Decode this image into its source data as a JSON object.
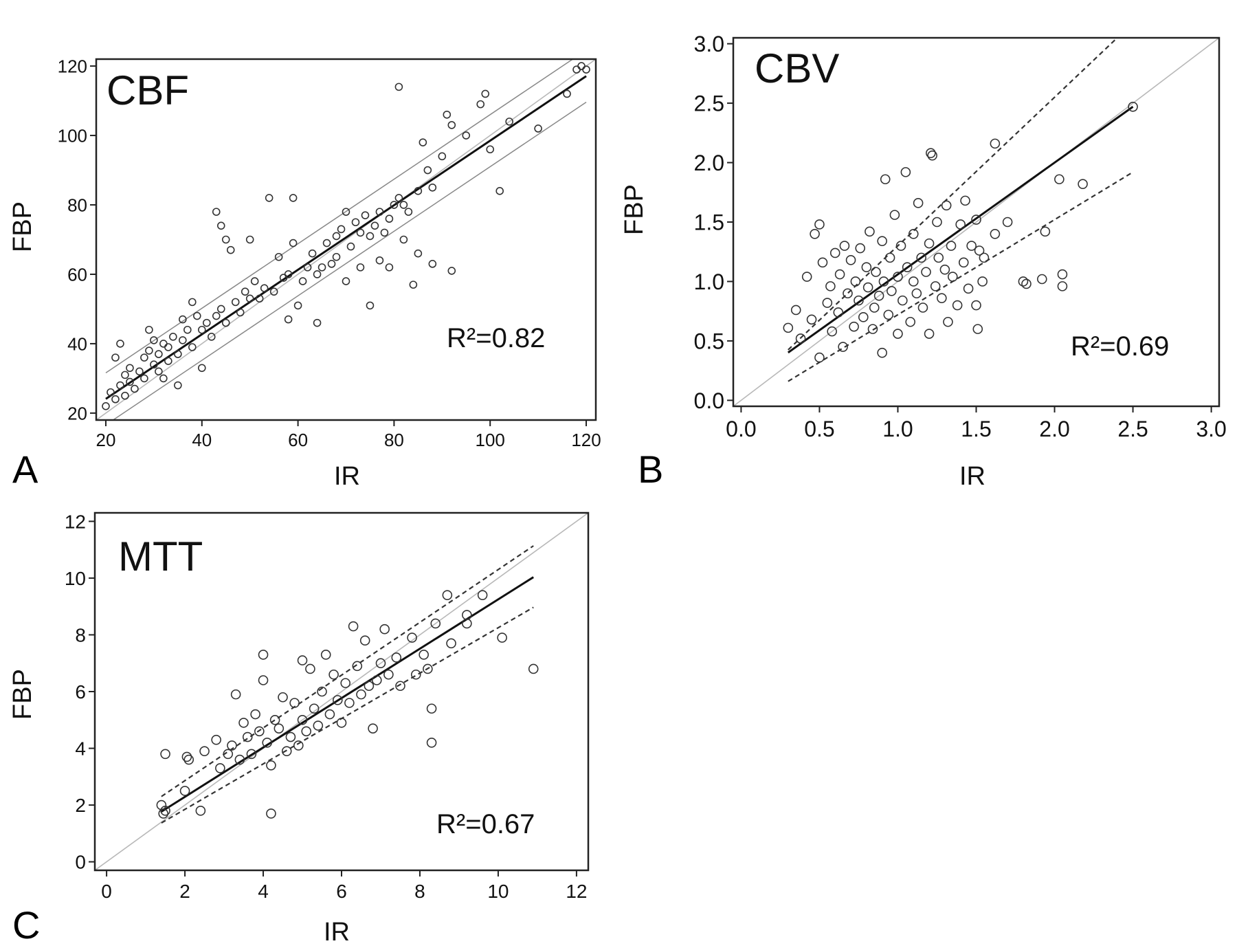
{
  "chart_data": [
    {
      "type": "scatter",
      "panel_label": "A",
      "title": "CBF",
      "xlabel": "IR",
      "ylabel": "FBP",
      "xlim": [
        18,
        122
      ],
      "ylim": [
        18,
        122
      ],
      "xticks": [
        "20",
        "40",
        "60",
        "80",
        "100",
        "120"
      ],
      "yticks": [
        "20",
        "40",
        "60",
        "80",
        "100",
        "120"
      ],
      "annotation": "R²=0.82",
      "identity_line": true,
      "band_style": "solid",
      "fit": {
        "slope": 0.93,
        "intercept": 5.5,
        "x_range": [
          20,
          120
        ]
      },
      "bands": {
        "slope": 0.93,
        "offset": 7.5
      },
      "points": [
        [
          20,
          22
        ],
        [
          21,
          26
        ],
        [
          22,
          24
        ],
        [
          22,
          36
        ],
        [
          23,
          28
        ],
        [
          23,
          40
        ],
        [
          24,
          25
        ],
        [
          24,
          31
        ],
        [
          25,
          29
        ],
        [
          25,
          33
        ],
        [
          26,
          27
        ],
        [
          27,
          32
        ],
        [
          28,
          30
        ],
        [
          28,
          36
        ],
        [
          29,
          38
        ],
        [
          29,
          44
        ],
        [
          30,
          34
        ],
        [
          30,
          41
        ],
        [
          31,
          32
        ],
        [
          31,
          37
        ],
        [
          32,
          30
        ],
        [
          32,
          40
        ],
        [
          33,
          35
        ],
        [
          33,
          39
        ],
        [
          34,
          42
        ],
        [
          35,
          28
        ],
        [
          35,
          37
        ],
        [
          36,
          41
        ],
        [
          36,
          47
        ],
        [
          37,
          44
        ],
        [
          38,
          39
        ],
        [
          38,
          52
        ],
        [
          39,
          48
        ],
        [
          40,
          44
        ],
        [
          40,
          33
        ],
        [
          41,
          46
        ],
        [
          42,
          42
        ],
        [
          43,
          48
        ],
        [
          43,
          78
        ],
        [
          44,
          74
        ],
        [
          44,
          50
        ],
        [
          45,
          70
        ],
        [
          45,
          46
        ],
        [
          46,
          67
        ],
        [
          47,
          52
        ],
        [
          48,
          49
        ],
        [
          49,
          55
        ],
        [
          50,
          53
        ],
        [
          50,
          70
        ],
        [
          51,
          58
        ],
        [
          52,
          53
        ],
        [
          53,
          56
        ],
        [
          54,
          82
        ],
        [
          55,
          55
        ],
        [
          56,
          65
        ],
        [
          57,
          59
        ],
        [
          58,
          47
        ],
        [
          58,
          60
        ],
        [
          59,
          82
        ],
        [
          59,
          69
        ],
        [
          60,
          51
        ],
        [
          61,
          58
        ],
        [
          62,
          62
        ],
        [
          63,
          66
        ],
        [
          64,
          60
        ],
        [
          64,
          46
        ],
        [
          65,
          62
        ],
        [
          66,
          69
        ],
        [
          67,
          63
        ],
        [
          68,
          71
        ],
        [
          68,
          65
        ],
        [
          69,
          73
        ],
        [
          70,
          78
        ],
        [
          70,
          58
        ],
        [
          71,
          68
        ],
        [
          72,
          75
        ],
        [
          73,
          72
        ],
        [
          73,
          62
        ],
        [
          74,
          77
        ],
        [
          75,
          51
        ],
        [
          75,
          71
        ],
        [
          76,
          74
        ],
        [
          77,
          78
        ],
        [
          77,
          64
        ],
        [
          78,
          72
        ],
        [
          79,
          76
        ],
        [
          79,
          62
        ],
        [
          80,
          80
        ],
        [
          81,
          114
        ],
        [
          81,
          82
        ],
        [
          82,
          80
        ],
        [
          82,
          70
        ],
        [
          83,
          78
        ],
        [
          84,
          57
        ],
        [
          85,
          66
        ],
        [
          85,
          84
        ],
        [
          86,
          98
        ],
        [
          87,
          90
        ],
        [
          88,
          63
        ],
        [
          88,
          85
        ],
        [
          90,
          94
        ],
        [
          91,
          106
        ],
        [
          92,
          103
        ],
        [
          92,
          61
        ],
        [
          95,
          100
        ],
        [
          98,
          109
        ],
        [
          99,
          112
        ],
        [
          100,
          96
        ],
        [
          102,
          84
        ],
        [
          104,
          104
        ],
        [
          110,
          102
        ],
        [
          116,
          112
        ],
        [
          118,
          119
        ],
        [
          119,
          120
        ],
        [
          120,
          119
        ]
      ]
    },
    {
      "type": "scatter",
      "panel_label": "B",
      "title": "CBV",
      "xlabel": "IR",
      "ylabel": "FBP",
      "xlim": [
        -0.05,
        3.05
      ],
      "ylim": [
        -0.05,
        3.05
      ],
      "xticks": [
        "0.0",
        "0.5",
        "1.0",
        "1.5",
        "2.0",
        "2.5",
        "3.0"
      ],
      "yticks": [
        "0.0",
        "0.5",
        "1.0",
        "1.5",
        "2.0",
        "2.5",
        "3.0"
      ],
      "annotation": "R²=0.69",
      "identity_line": true,
      "band_style": "dashed",
      "fit": {
        "slope": 0.94,
        "intercept": 0.12,
        "x_range": [
          0.3,
          2.5
        ]
      },
      "bands": {
        "slope": 1.25,
        "intercept": 0.05,
        "lower_slope": 0.8,
        "lower_intercept": -0.08
      },
      "points": [
        [
          0.3,
          0.61
        ],
        [
          0.35,
          0.76
        ],
        [
          0.38,
          0.52
        ],
        [
          0.42,
          1.04
        ],
        [
          0.45,
          0.68
        ],
        [
          0.47,
          1.4
        ],
        [
          0.5,
          1.48
        ],
        [
          0.5,
          0.36
        ],
        [
          0.52,
          1.16
        ],
        [
          0.55,
          0.82
        ],
        [
          0.57,
          0.96
        ],
        [
          0.58,
          0.58
        ],
        [
          0.6,
          1.24
        ],
        [
          0.62,
          0.74
        ],
        [
          0.63,
          1.06
        ],
        [
          0.65,
          0.45
        ],
        [
          0.66,
          1.3
        ],
        [
          0.68,
          0.9
        ],
        [
          0.7,
          1.18
        ],
        [
          0.72,
          0.62
        ],
        [
          0.73,
          1.0
        ],
        [
          0.75,
          0.84
        ],
        [
          0.76,
          1.28
        ],
        [
          0.78,
          0.7
        ],
        [
          0.8,
          1.12
        ],
        [
          0.81,
          0.95
        ],
        [
          0.82,
          1.42
        ],
        [
          0.84,
          0.6
        ],
        [
          0.85,
          0.78
        ],
        [
          0.86,
          1.08
        ],
        [
          0.88,
          0.88
        ],
        [
          0.9,
          1.34
        ],
        [
          0.9,
          0.4
        ],
        [
          0.91,
          1.0
        ],
        [
          0.92,
          1.86
        ],
        [
          0.94,
          0.72
        ],
        [
          0.95,
          1.2
        ],
        [
          0.96,
          0.92
        ],
        [
          0.98,
          1.56
        ],
        [
          1.0,
          1.04
        ],
        [
          1.0,
          0.56
        ],
        [
          1.02,
          1.3
        ],
        [
          1.03,
          0.84
        ],
        [
          1.05,
          1.92
        ],
        [
          1.06,
          1.12
        ],
        [
          1.08,
          0.66
        ],
        [
          1.1,
          1.0
        ],
        [
          1.1,
          1.4
        ],
        [
          1.12,
          0.9
        ],
        [
          1.13,
          1.66
        ],
        [
          1.15,
          1.2
        ],
        [
          1.16,
          0.78
        ],
        [
          1.18,
          1.08
        ],
        [
          1.2,
          1.32
        ],
        [
          1.2,
          0.56
        ],
        [
          1.21,
          2.08
        ],
        [
          1.22,
          2.06
        ],
        [
          1.24,
          0.96
        ],
        [
          1.25,
          1.5
        ],
        [
          1.26,
          1.2
        ],
        [
          1.28,
          0.86
        ],
        [
          1.3,
          1.1
        ],
        [
          1.31,
          1.64
        ],
        [
          1.32,
          0.66
        ],
        [
          1.34,
          1.3
        ],
        [
          1.35,
          1.04
        ],
        [
          1.38,
          0.8
        ],
        [
          1.4,
          1.48
        ],
        [
          1.42,
          1.16
        ],
        [
          1.43,
          1.68
        ],
        [
          1.45,
          0.94
        ],
        [
          1.47,
          1.3
        ],
        [
          1.5,
          0.8
        ],
        [
          1.5,
          1.52
        ],
        [
          1.51,
          0.6
        ],
        [
          1.52,
          1.26
        ],
        [
          1.54,
          1.0
        ],
        [
          1.55,
          1.2
        ],
        [
          1.62,
          2.16
        ],
        [
          1.62,
          1.4
        ],
        [
          1.7,
          1.5
        ],
        [
          1.8,
          1.0
        ],
        [
          1.82,
          0.98
        ],
        [
          1.92,
          1.02
        ],
        [
          1.94,
          1.42
        ],
        [
          2.03,
          1.86
        ],
        [
          2.05,
          1.06
        ],
        [
          2.05,
          0.96
        ],
        [
          2.18,
          1.82
        ],
        [
          2.5,
          2.47
        ]
      ]
    },
    {
      "type": "scatter",
      "panel_label": "C",
      "title": "MTT",
      "xlabel": "IR",
      "ylabel": "FBP",
      "xlim": [
        -0.3,
        12.3
      ],
      "ylim": [
        -0.3,
        12.3
      ],
      "xticks": [
        "0",
        "2",
        "4",
        "6",
        "8",
        "10",
        "12"
      ],
      "yticks": [
        "0",
        "2",
        "4",
        "6",
        "8",
        "10",
        "12"
      ],
      "annotation": "R²=0.67",
      "identity_line": true,
      "band_style": "dashed",
      "fit": {
        "slope": 0.87,
        "intercept": 0.55,
        "x_range": [
          1.4,
          10.9
        ]
      },
      "bands": {
        "slope": 0.93,
        "intercept": 1.0,
        "lower_slope": 0.8,
        "lower_intercept": 0.25
      },
      "points": [
        [
          1.4,
          2.0
        ],
        [
          1.45,
          1.7
        ],
        [
          1.5,
          3.8
        ],
        [
          1.5,
          1.8
        ],
        [
          2.0,
          2.5
        ],
        [
          2.05,
          3.7
        ],
        [
          2.1,
          3.6
        ],
        [
          2.4,
          1.8
        ],
        [
          2.5,
          3.9
        ],
        [
          2.8,
          4.3
        ],
        [
          2.9,
          3.3
        ],
        [
          3.1,
          3.8
        ],
        [
          3.2,
          4.1
        ],
        [
          3.3,
          5.9
        ],
        [
          3.4,
          3.6
        ],
        [
          3.5,
          4.9
        ],
        [
          3.6,
          4.4
        ],
        [
          3.7,
          3.8
        ],
        [
          3.8,
          5.2
        ],
        [
          3.9,
          4.6
        ],
        [
          4.0,
          7.3
        ],
        [
          4.0,
          6.4
        ],
        [
          4.1,
          4.2
        ],
        [
          4.2,
          3.4
        ],
        [
          4.2,
          1.7
        ],
        [
          4.3,
          5.0
        ],
        [
          4.4,
          4.7
        ],
        [
          4.5,
          5.8
        ],
        [
          4.6,
          3.9
        ],
        [
          4.7,
          4.4
        ],
        [
          4.8,
          5.6
        ],
        [
          4.9,
          4.1
        ],
        [
          5.0,
          7.1
        ],
        [
          5.0,
          5.0
        ],
        [
          5.1,
          4.6
        ],
        [
          5.2,
          6.8
        ],
        [
          5.3,
          5.4
        ],
        [
          5.4,
          4.8
        ],
        [
          5.5,
          6.0
        ],
        [
          5.6,
          7.3
        ],
        [
          5.7,
          5.2
        ],
        [
          5.8,
          6.6
        ],
        [
          5.9,
          5.7
        ],
        [
          6.0,
          4.9
        ],
        [
          6.1,
          6.3
        ],
        [
          6.2,
          5.6
        ],
        [
          6.3,
          8.3
        ],
        [
          6.4,
          6.9
        ],
        [
          6.5,
          5.9
        ],
        [
          6.6,
          7.8
        ],
        [
          6.7,
          6.2
        ],
        [
          6.8,
          4.7
        ],
        [
          6.9,
          6.4
        ],
        [
          7.0,
          7.0
        ],
        [
          7.1,
          8.2
        ],
        [
          7.2,
          6.6
        ],
        [
          7.4,
          7.2
        ],
        [
          7.5,
          6.2
        ],
        [
          7.8,
          7.9
        ],
        [
          7.9,
          6.6
        ],
        [
          8.1,
          7.3
        ],
        [
          8.2,
          6.8
        ],
        [
          8.3,
          5.4
        ],
        [
          8.3,
          4.2
        ],
        [
          8.4,
          8.4
        ],
        [
          8.7,
          9.4
        ],
        [
          8.8,
          7.7
        ],
        [
          9.2,
          8.7
        ],
        [
          9.2,
          8.4
        ],
        [
          9.6,
          9.4
        ],
        [
          10.1,
          7.9
        ],
        [
          10.9,
          6.8
        ]
      ]
    }
  ]
}
